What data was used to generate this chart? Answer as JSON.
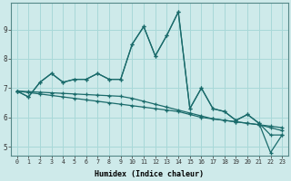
{
  "xlabel": "Humidex (Indice chaleur)",
  "bg_color": "#ceeaea",
  "line_color": "#1a6b6b",
  "grid_color": "#a8d8d8",
  "xlim": [
    -0.5,
    23.5
  ],
  "ylim": [
    4.7,
    9.9
  ],
  "xticks": [
    0,
    1,
    2,
    3,
    4,
    5,
    6,
    7,
    8,
    9,
    10,
    11,
    12,
    13,
    14,
    15,
    16,
    17,
    18,
    19,
    20,
    21,
    22,
    23
  ],
  "yticks": [
    5,
    6,
    7,
    8,
    9
  ],
  "series": [
    [
      6.9,
      6.7,
      7.2,
      7.5,
      7.2,
      7.3,
      7.3,
      7.5,
      7.3,
      7.3,
      8.5,
      9.1,
      8.1,
      8.8,
      9.6,
      6.3,
      7.0,
      6.3,
      6.2,
      5.9,
      6.1,
      5.8,
      5.4,
      5.4
    ],
    [
      6.9,
      6.7,
      7.2,
      7.5,
      7.2,
      7.3,
      7.3,
      7.5,
      7.3,
      7.3,
      8.5,
      9.1,
      8.1,
      8.8,
      9.6,
      6.3,
      7.0,
      6.3,
      6.2,
      5.9,
      6.1,
      5.8,
      4.8,
      5.4
    ],
    [
      6.9,
      6.85,
      6.8,
      6.75,
      6.7,
      6.65,
      6.6,
      6.55,
      6.5,
      6.45,
      6.4,
      6.35,
      6.3,
      6.25,
      6.2,
      6.1,
      6.0,
      5.95,
      5.9,
      5.85,
      5.8,
      5.75,
      5.7,
      5.65
    ],
    [
      6.9,
      6.88,
      6.86,
      6.84,
      6.82,
      6.8,
      6.78,
      6.76,
      6.74,
      6.72,
      6.65,
      6.55,
      6.45,
      6.35,
      6.25,
      6.15,
      6.05,
      5.95,
      5.9,
      5.85,
      5.8,
      5.75,
      5.65,
      5.55
    ]
  ]
}
